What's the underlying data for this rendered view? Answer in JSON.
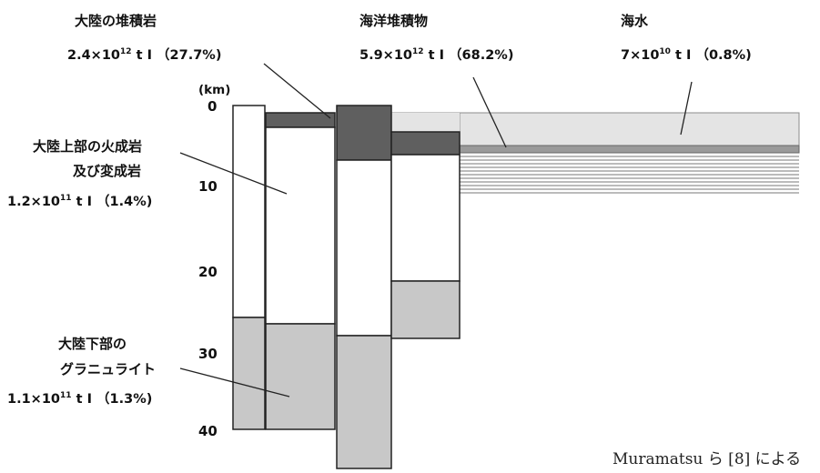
{
  "colors": {
    "sediment": "#5f5f5f",
    "granulite": "#c8c8c8",
    "seawater": "#e4e4e4",
    "seawater_edge": "#8c8c8c",
    "outline": "#222222"
  },
  "axis": {
    "unit": "(km)",
    "ticks": [
      "0",
      "10",
      "20",
      "30",
      "40"
    ]
  },
  "labels": {
    "continental_sediment": {
      "title": "大陸の堆積岩",
      "amount_base": "2.4×10",
      "amount_exp": "12",
      "amount_rest": "t I （27.7%)"
    },
    "ocean_sediment": {
      "title": "海洋堆積物",
      "amount_base": "5.9×10",
      "amount_exp": "12",
      "amount_rest": "t I （68.2%)"
    },
    "seawater": {
      "title": "海水",
      "amount_base": "7×10",
      "amount_exp": "10",
      "amount_rest": "t I （0.8%)"
    },
    "upper_crust": {
      "title_line1": "大陸上部の火成岩",
      "title_line2": "及び変成岩",
      "amount_base": "1.2×10",
      "amount_exp": "11",
      "amount_rest": "t I （1.4%)"
    },
    "lower_crust": {
      "title_line1": "大陸下部の",
      "title_line2": "グラニュライト",
      "amount_base": "1.1×10",
      "amount_exp": "11",
      "amount_rest": "t I （1.3%)"
    }
  },
  "source": "Muramatsu ら [8] による"
}
